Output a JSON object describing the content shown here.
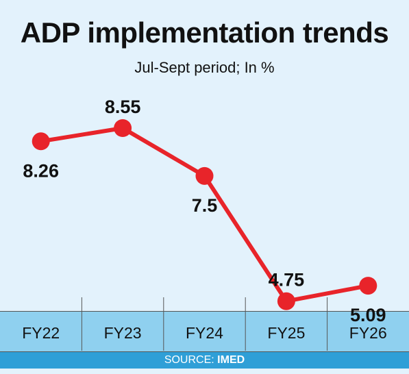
{
  "chart_data": {
    "type": "line",
    "title": "ADP implementation trends",
    "subtitle": "Jul-Sept period; In %",
    "categories": [
      "FY22",
      "FY23",
      "FY24",
      "FY25",
      "FY26"
    ],
    "series": [
      {
        "values": [
          8.26,
          8.55,
          7.5,
          4.75,
          5.09
        ],
        "labels": [
          "8.26",
          "8.55",
          "7.5",
          "4.75",
          "5.09"
        ]
      }
    ],
    "line_color": "#e8242a",
    "grid": false,
    "source_label": "SOURCE:",
    "source_value": "IMED"
  },
  "colors": {
    "background": "#e3f2fc",
    "axis_bar": "#8fd0ef",
    "source_bar": "#2f9fd7"
  }
}
